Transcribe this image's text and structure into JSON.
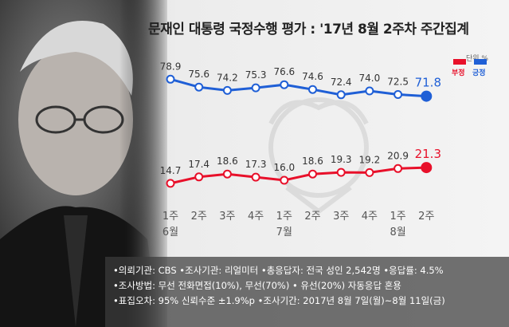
{
  "title": "문재인 대통령 국정수행 평가 : '17년 8월 2주차 주간집계",
  "unit_label": "단위 %",
  "legend": {
    "negative": "부정",
    "positive": "긍정"
  },
  "colors": {
    "negative": "#e8102a",
    "positive": "#1f5fd6"
  },
  "footnotes": [
    "•의뢰기관: CBS •조사기관: 리얼미터 •총응답자: 전국 성인 2,542명 •응답률: 4.5%",
    "•조사방법: 무선 전화면접(10%), 무선(70%) • 유선(20%) 자동응답 혼용",
    "•표집오차: 95% 신뢰수준 ±1.9%p •조사기간: 2017년 8월 7일(월)~8월 11일(금)"
  ],
  "chart_data": {
    "type": "line",
    "title": "문재인 대통령 국정수행 평가 : '17년 8월 2주차 주간집계",
    "categories": [
      "1주",
      "2주",
      "3주",
      "4주",
      "1주",
      "2주",
      "3주",
      "4주",
      "1주",
      "2주"
    ],
    "month_labels": [
      {
        "index": 0,
        "label": "6월"
      },
      {
        "index": 4,
        "label": "7월"
      },
      {
        "index": 8,
        "label": "8월"
      }
    ],
    "series": [
      {
        "name": "긍정",
        "color": "#1f5fd6",
        "values": [
          78.9,
          75.6,
          74.2,
          75.3,
          76.6,
          74.6,
          72.4,
          74.0,
          72.5,
          71.8
        ]
      },
      {
        "name": "부정",
        "color": "#e8102a",
        "values": [
          14.7,
          17.4,
          18.6,
          17.3,
          16.0,
          18.6,
          19.3,
          19.2,
          20.9,
          21.3
        ]
      }
    ],
    "grid": false,
    "legend": "top-right"
  }
}
